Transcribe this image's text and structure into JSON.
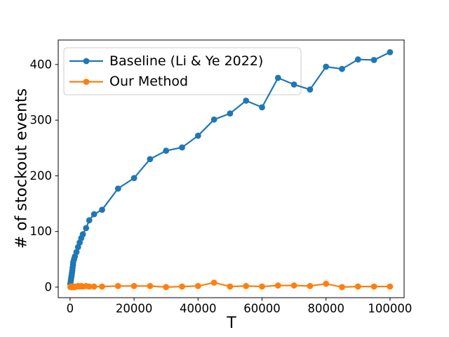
{
  "figure": {
    "background": "#ffffff"
  },
  "legend": {
    "position": "upper left",
    "entries": [
      {
        "label": "Baseline (Li & Ye 2022)",
        "color": "#1f77b4"
      },
      {
        "label": "Our Method",
        "color": "#ff7f0e"
      }
    ]
  },
  "chart_data": {
    "type": "line",
    "title": "",
    "xlabel": "T",
    "ylabel": "# of stockout events",
    "grid": false,
    "legend_position": "upper left",
    "x_ticks": [
      0,
      20000,
      40000,
      60000,
      80000,
      100000
    ],
    "y_ticks": [
      0,
      100,
      200,
      300,
      400
    ],
    "xlim": [
      -3700,
      104400
    ],
    "ylim": [
      -19,
      444
    ],
    "x": [
      100,
      200,
      300,
      400,
      500,
      600,
      700,
      800,
      900,
      1000,
      1250,
      1500,
      2000,
      2500,
      3000,
      3500,
      4000,
      5000,
      6000,
      7500,
      10000,
      15000,
      20000,
      25000,
      30000,
      35000,
      40000,
      45000,
      50000,
      55000,
      60000,
      65000,
      70000,
      75000,
      80000,
      85000,
      90000,
      95000,
      100000
    ],
    "series": [
      {
        "name": "Baseline (Li & Ye 2022)",
        "color": "#1f77b4",
        "values": [
          6,
          10,
          14,
          18,
          22,
          26,
          30,
          35,
          40,
          45,
          50,
          55,
          63,
          72,
          80,
          88,
          95,
          106,
          120,
          131,
          139,
          177,
          196,
          230,
          245,
          251,
          272,
          301,
          312,
          335,
          323,
          376,
          364,
          355,
          396,
          392,
          409,
          408,
          422
        ]
      },
      {
        "name": "Our Method",
        "color": "#ff7f0e",
        "values": [
          0,
          1,
          0,
          1,
          0,
          1,
          0,
          1,
          1,
          0,
          1,
          0,
          1,
          2,
          1,
          2,
          1,
          2,
          1,
          1,
          1,
          2,
          2,
          2,
          0,
          1,
          2,
          8,
          1,
          2,
          1,
          3,
          3,
          2,
          6,
          0,
          1,
          1,
          1
        ]
      }
    ]
  }
}
